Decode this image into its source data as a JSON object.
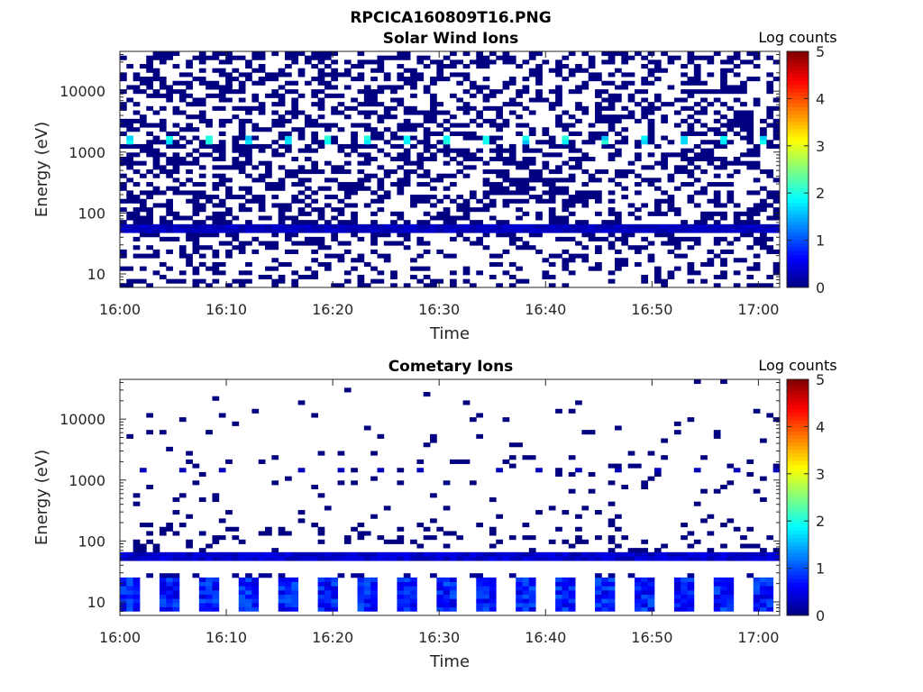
{
  "figure_title": "RPCICA160809T16.PNG",
  "chart_data": [
    {
      "type": "heatmap",
      "title": "Solar Wind Ions",
      "xlabel": "Time",
      "ylabel": "Energy (eV)",
      "x_range": [
        "16:00",
        "17:02"
      ],
      "y_range": [
        6,
        45000
      ],
      "y_scale": "log",
      "x_ticks": [
        "16:00",
        "16:10",
        "16:20",
        "16:30",
        "16:40",
        "16:50",
        "17:00"
      ],
      "y_ticks": [
        "10",
        "100",
        "1000",
        "10000"
      ],
      "colorbar": {
        "label": "Log counts",
        "min": 0,
        "max": 5,
        "ticks": [
          "0",
          "1",
          "2",
          "3",
          "4",
          "5"
        ],
        "colormap": "jet"
      },
      "features": {
        "background_level": 0.0,
        "band_energy_eV": 55,
        "band_level": 0.3,
        "periodic_peak_energy_eV": 1600,
        "periodic_peak_level": 1.9
      }
    },
    {
      "type": "heatmap",
      "title": "Cometary Ions",
      "xlabel": "Time",
      "ylabel": "Energy (eV)",
      "x_range": [
        "16:00",
        "17:02"
      ],
      "y_range": [
        6,
        45000
      ],
      "y_scale": "log",
      "x_ticks": [
        "16:00",
        "16:10",
        "16:20",
        "16:30",
        "16:40",
        "16:50",
        "17:00"
      ],
      "y_ticks": [
        "10",
        "100",
        "1000",
        "10000"
      ],
      "colorbar": {
        "label": "Log counts",
        "min": 0,
        "max": 5,
        "ticks": [
          "0",
          "1",
          "2",
          "3",
          "4",
          "5"
        ],
        "colormap": "jet"
      },
      "features": {
        "background_level": 0.0,
        "band_energy_eV": 55,
        "band_level": 0.4,
        "low_energy_burst_eV": 10,
        "low_energy_burst_level": 1.0
      }
    }
  ]
}
